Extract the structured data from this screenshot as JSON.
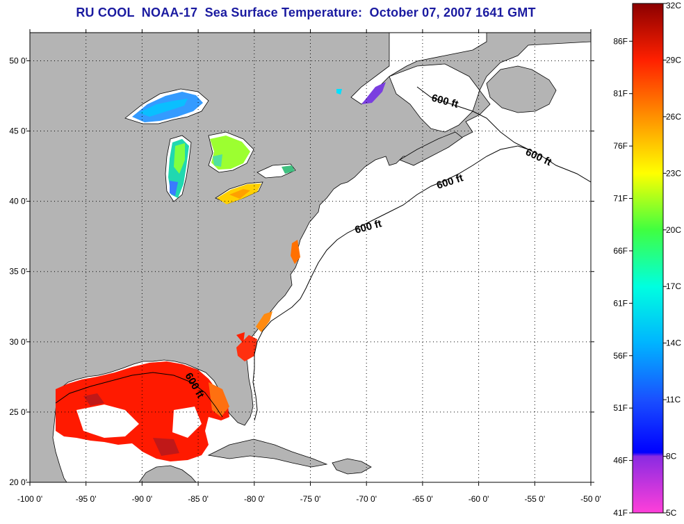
{
  "title": "RU COOL  NOAA-17  Sea Surface Temperature:  October 07, 2007 1641 GMT",
  "map": {
    "lon_range": [
      -100,
      -50
    ],
    "lat_range": [
      20,
      52
    ],
    "x_ticks": [
      {
        "value": -100,
        "label": "-100 0'"
      },
      {
        "value": -95,
        "label": "-95 0'"
      },
      {
        "value": -90,
        "label": "-90 0'"
      },
      {
        "value": -85,
        "label": "-85 0'"
      },
      {
        "value": -80,
        "label": "-80 0'"
      },
      {
        "value": -75,
        "label": "-75 0'"
      },
      {
        "value": -70,
        "label": "-70 0'"
      },
      {
        "value": -65,
        "label": "-65 0'"
      },
      {
        "value": -60,
        "label": "-60 0'"
      },
      {
        "value": -55,
        "label": "-55 0'"
      },
      {
        "value": -50,
        "label": "-50 0'"
      }
    ],
    "y_ticks": [
      {
        "value": 20,
        "label": "20 0'"
      },
      {
        "value": 25,
        "label": "25 0'"
      },
      {
        "value": 30,
        "label": "30 0'"
      },
      {
        "value": 35,
        "label": "35 0'"
      },
      {
        "value": 40,
        "label": "40 0'"
      },
      {
        "value": 45,
        "label": "45 0'"
      },
      {
        "value": 50,
        "label": "50 0'"
      }
    ],
    "grid": "dotted",
    "contour_label": "600 ft",
    "colors": {
      "land": "#b4b4b4",
      "ocean": "#ffffff",
      "coast": "#000000"
    }
  },
  "colorbar": {
    "range_c": [
      5,
      32
    ],
    "celsius_labels": [
      "32C",
      "29C",
      "26C",
      "23C",
      "20C",
      "17C",
      "14C",
      "11C",
      "8C",
      "5C"
    ],
    "fahrenheit_labels": [
      "86F",
      "81F",
      "76F",
      "71F",
      "66F",
      "61F",
      "56F",
      "51F",
      "46F",
      "41F"
    ],
    "fahrenheit_values": [
      86,
      81,
      76,
      71,
      66,
      61,
      56,
      51,
      46,
      41
    ],
    "stops": [
      {
        "c": 5,
        "color": "#ff3fd9"
      },
      {
        "c": 8,
        "color": "#8a2be2"
      },
      {
        "c": 8.2,
        "color": "#0000ff"
      },
      {
        "c": 11,
        "color": "#1a50ff"
      },
      {
        "c": 14,
        "color": "#00b4ff"
      },
      {
        "c": 17,
        "color": "#00ffe0"
      },
      {
        "c": 20,
        "color": "#40ff40"
      },
      {
        "c": 23,
        "color": "#ffff00"
      },
      {
        "c": 26,
        "color": "#ff9000"
      },
      {
        "c": 29,
        "color": "#ff2000"
      },
      {
        "c": 32,
        "color": "#8b0000"
      }
    ]
  }
}
